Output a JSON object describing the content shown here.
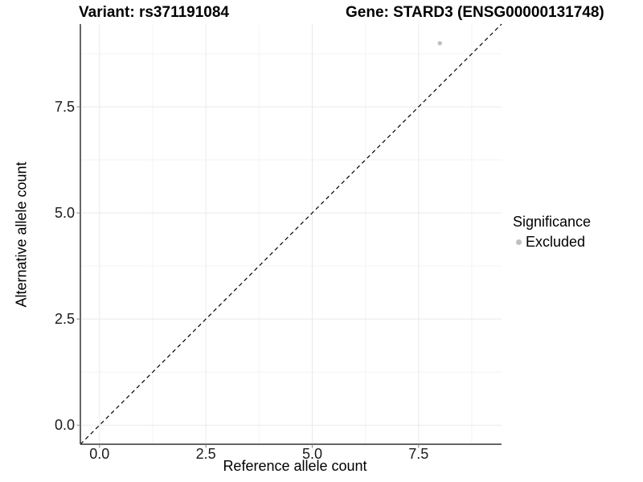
{
  "header": {
    "title_left": "Variant: rs371191084",
    "title_right": "Gene: STARD3 (ENSG00000131748)"
  },
  "chart_data": {
    "type": "scatter",
    "title": "Variant: rs371191084    Gene: STARD3 (ENSG00000131748)",
    "xlabel": "Reference allele count",
    "ylabel": "Alternative allele count",
    "xlim": [
      -0.45,
      9.45
    ],
    "ylim": [
      -0.45,
      9.45
    ],
    "x_ticks": {
      "values": [
        0.0,
        2.5,
        5.0,
        7.5
      ],
      "labels": [
        "0.0",
        "2.5",
        "5.0",
        "7.5"
      ]
    },
    "y_ticks": {
      "values": [
        0.0,
        2.5,
        5.0,
        7.5
      ],
      "labels": [
        "0.0",
        "2.5",
        "5.0",
        "7.5"
      ]
    },
    "x_minor_ticks": [
      1.25,
      3.75,
      6.25,
      8.75
    ],
    "y_minor_ticks": [
      1.25,
      3.75,
      6.25,
      8.75
    ],
    "grid": true,
    "series": [
      {
        "name": "Excluded",
        "color": "#bfbfbf",
        "points": [
          {
            "x": 8,
            "y": 9
          }
        ]
      }
    ],
    "reference_line": {
      "type": "identity y = x",
      "style": "dashed",
      "color": "#000000"
    },
    "legend": {
      "title": "Significance",
      "position": "right",
      "items": [
        {
          "label": "Excluded",
          "color": "#bfbfbf",
          "marker": "circle"
        }
      ]
    },
    "style": {
      "background": "#ffffff",
      "grid_major": "#e9e9e9",
      "grid_minor": "#f3f3f3",
      "axis_line": "#333333",
      "tick_mark": "#848484",
      "tick_label_color": "#1a1a1a",
      "point_radius": 2.7
    }
  }
}
